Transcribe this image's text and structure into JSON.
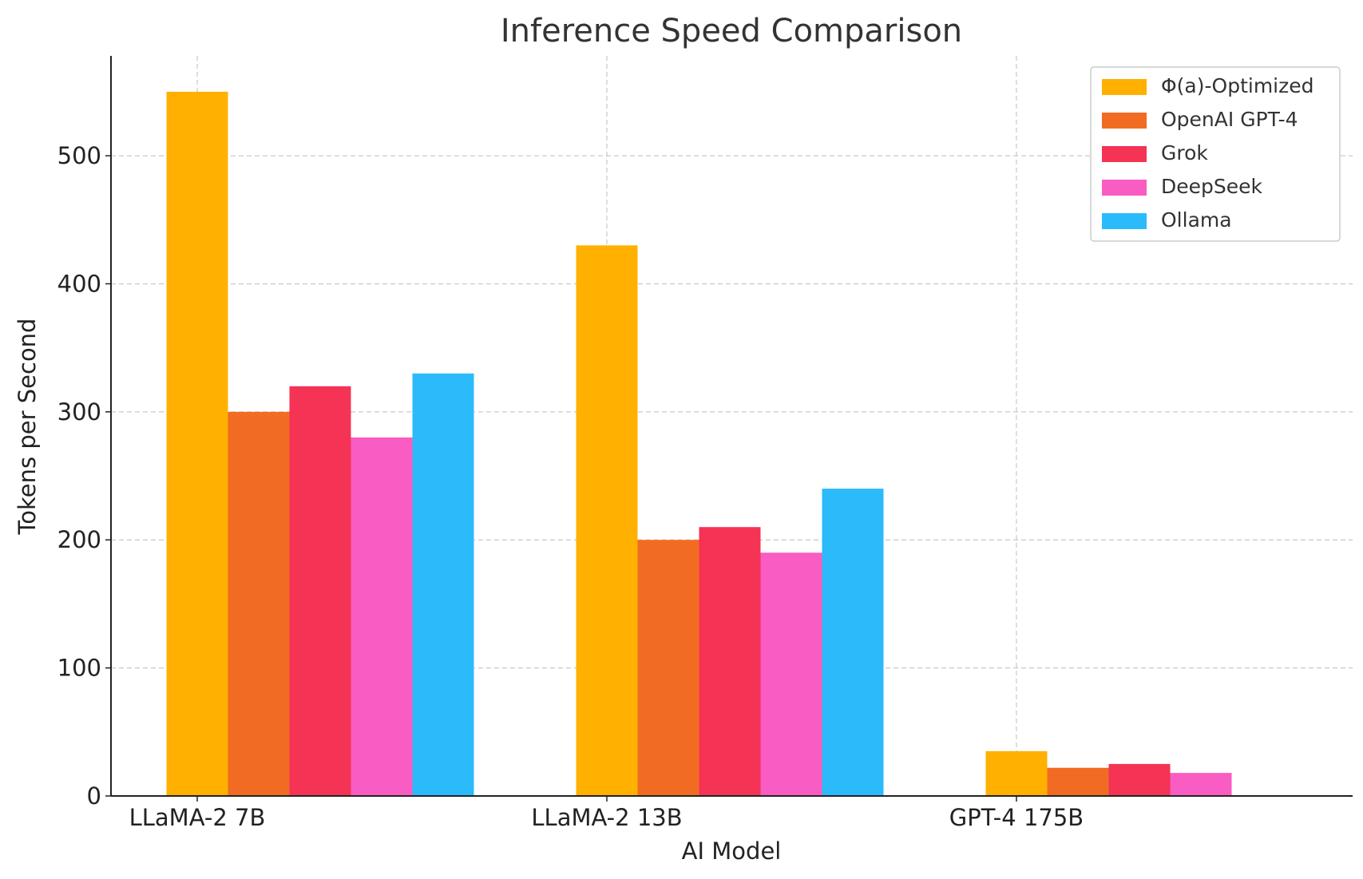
{
  "chart_data": {
    "type": "bar",
    "title": "Inference Speed Comparison",
    "xlabel": "AI Model",
    "ylabel": "Tokens per Second",
    "categories": [
      "LLaMA-2 7B",
      "LLaMA-2 13B",
      "GPT-4 175B"
    ],
    "series": [
      {
        "name": "Φ(a)-Optimized",
        "color": "#FFB000",
        "values": [
          550,
          430,
          35
        ]
      },
      {
        "name": "OpenAI GPT-4",
        "color": "#F26B22",
        "values": [
          300,
          200,
          22
        ]
      },
      {
        "name": "Grok",
        "color": "#F43355",
        "values": [
          320,
          210,
          25
        ]
      },
      {
        "name": "DeepSeek",
        "color": "#F95CC2",
        "values": [
          280,
          190,
          18
        ]
      },
      {
        "name": "Ollama",
        "color": "#2BBBFB",
        "values": [
          330,
          240,
          null
        ]
      }
    ],
    "yticks": [
      0,
      100,
      200,
      300,
      400,
      500
    ],
    "ylim": [
      0,
      578
    ],
    "grid": true,
    "legend_position": "top-right"
  }
}
